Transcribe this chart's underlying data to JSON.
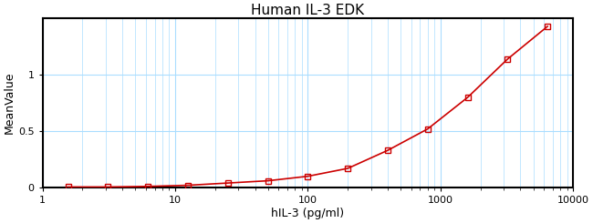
{
  "title": "Human IL-3 EDK",
  "xlabel": "hIL-3 (pg/ml)",
  "ylabel": "MeanValue",
  "data_x": [
    1.56,
    3.12,
    6.25,
    12.5,
    25,
    50,
    100,
    200,
    400,
    800,
    1600,
    3200,
    6400
  ],
  "data_y": [
    0.005,
    0.005,
    0.01,
    0.02,
    0.04,
    0.06,
    0.1,
    0.17,
    0.33,
    0.52,
    0.8,
    1.14,
    1.43
  ],
  "xlim": [
    1,
    10000
  ],
  "ylim": [
    0,
    1.5
  ],
  "curve_color": "#cc0000",
  "marker_color": "#cc0000",
  "grid_major_color": "#aaddff",
  "grid_minor_color": "#aaddff",
  "bg_color": "#ffffff",
  "title_fontsize": 11,
  "label_fontsize": 9,
  "tick_fontsize": 8,
  "yticks": [
    0,
    0.5,
    1.0
  ],
  "ytick_labels": [
    "0",
    "0.5",
    "1"
  ],
  "xticks": [
    1,
    10,
    100,
    1000,
    10000
  ],
  "xtick_labels": [
    "1",
    "10",
    "100",
    "1000",
    "10000"
  ]
}
